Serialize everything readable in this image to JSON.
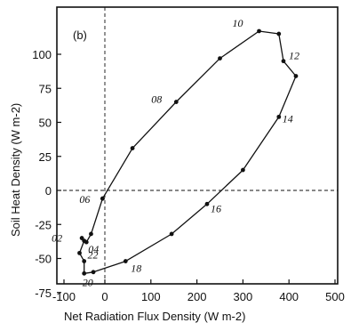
{
  "chart_data": {
    "type": "line",
    "panel_label": "(b)",
    "xlabel": "Net Radiation Flux Density (W m-2)",
    "ylabel": "Soil Heat Density (W m-2)",
    "xlim": [
      -75,
      500
    ],
    "ylim": [
      -75,
      125
    ],
    "xticks": [
      -100,
      0,
      100,
      200,
      300,
      400,
      500
    ],
    "xtick_labels": [
      "-100",
      "0",
      "100",
      "200",
      "300",
      "400",
      "500"
    ],
    "yticks": [
      -75,
      -50,
      -25,
      0,
      25,
      50,
      75,
      100
    ],
    "ytick_labels": [
      "-75",
      "-50",
      "-25",
      "0",
      "25",
      "50",
      "75",
      "100"
    ],
    "reference_lines": {
      "x": 0,
      "y": 0,
      "style": "dashed"
    },
    "grid": false,
    "series": [
      {
        "points": [
          {
            "x": -5,
            "y": -6,
            "label": "06"
          },
          {
            "x": 60,
            "y": 31
          },
          {
            "x": 155,
            "y": 65,
            "label": "08"
          },
          {
            "x": 250,
            "y": 97
          },
          {
            "x": 335,
            "y": 117,
            "label": "10"
          },
          {
            "x": 378,
            "y": 115
          },
          {
            "x": 388,
            "y": 95,
            "label": "12"
          },
          {
            "x": 415,
            "y": 84
          },
          {
            "x": 378,
            "y": 54,
            "label": "14"
          },
          {
            "x": 300,
            "y": 15
          },
          {
            "x": 222,
            "y": -10,
            "label": "16"
          },
          {
            "x": 145,
            "y": -32
          },
          {
            "x": 45,
            "y": -52,
            "label": "18"
          },
          {
            "x": -25,
            "y": -60
          },
          {
            "x": -45,
            "y": -61,
            "label": "20"
          },
          {
            "x": -45,
            "y": -52
          },
          {
            "x": -55,
            "y": -46,
            "label": "22"
          },
          {
            "x": -45,
            "y": -37
          },
          {
            "x": -50,
            "y": -35,
            "label": "02"
          },
          {
            "x": -40,
            "y": -38,
            "label": "04"
          },
          {
            "x": -30,
            "y": -32
          },
          {
            "x": -5,
            "y": -6
          }
        ]
      }
    ]
  }
}
